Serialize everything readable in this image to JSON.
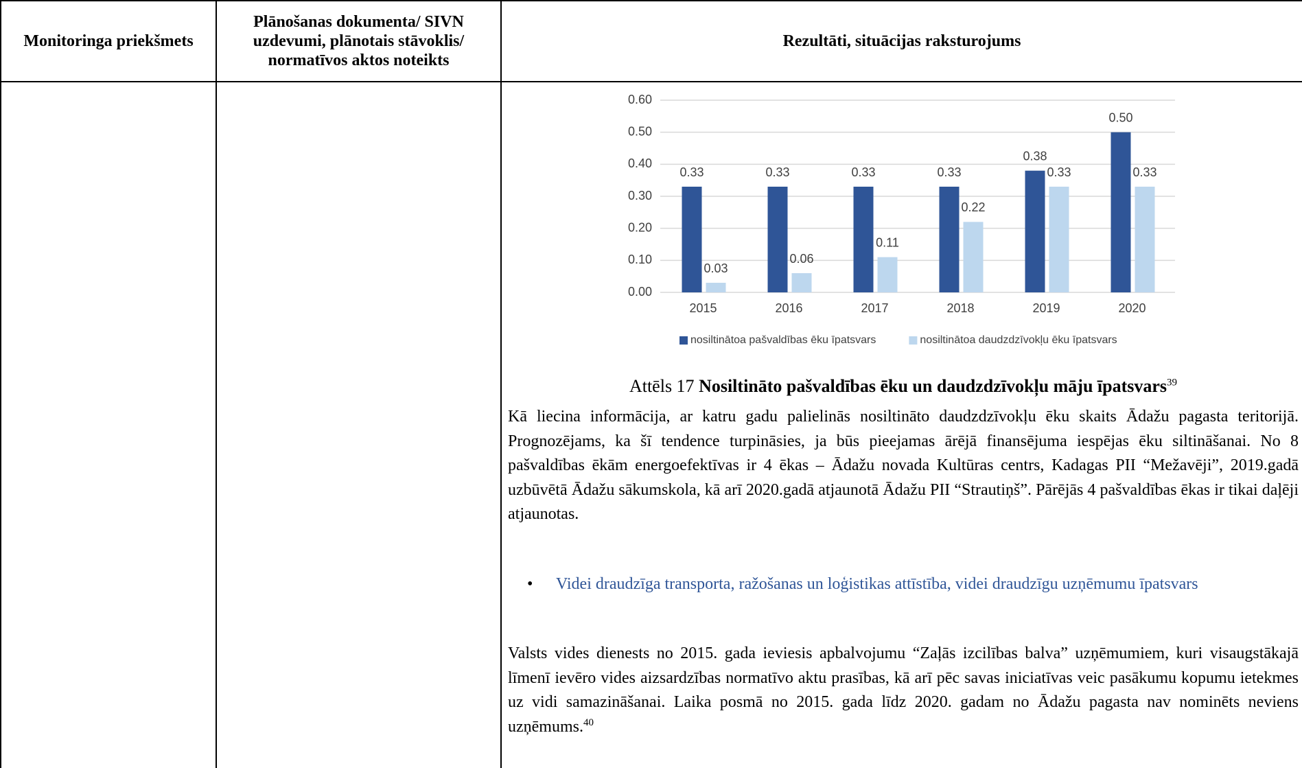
{
  "table": {
    "headers": [
      "Monitoringa priekšmets",
      "Plānošanas dokumenta/ SIVN uzdevumi, plānotais stāvoklis/ normatīvos aktos noteikts",
      "Rezultāti, situācijas raksturojums"
    ]
  },
  "chart": {
    "type": "bar",
    "categories": [
      "2015",
      "2016",
      "2017",
      "2018",
      "2019",
      "2020"
    ],
    "series": [
      {
        "name": "nosiltinātoa pašvaldības ēku īpatsvars",
        "color": "#2f5597",
        "values": [
          0.33,
          0.33,
          0.33,
          0.33,
          0.38,
          0.5
        ],
        "value_labels": [
          "0.33",
          "0.33",
          "0.33",
          "0.33",
          "0.38",
          "0.50"
        ]
      },
      {
        "name": "nosiltinātoa daudzdzīvokļu ēku īpatsvars",
        "color": "#bdd7ee",
        "values": [
          0.03,
          0.06,
          0.11,
          0.22,
          0.33,
          0.33
        ],
        "value_labels": [
          "0.03",
          "0.06",
          "0.11",
          "0.22",
          "0.33",
          "0.33"
        ]
      }
    ],
    "ylim": [
      0,
      0.6
    ],
    "yticks": [
      {
        "value": 0,
        "label": "0.00"
      },
      {
        "value": 0.1,
        "label": "0.10"
      },
      {
        "value": 0.2,
        "label": "0.20"
      },
      {
        "value": 0.3,
        "label": "0.30"
      },
      {
        "value": 0.4,
        "label": "0.40"
      },
      {
        "value": 0.5,
        "label": "0.50"
      },
      {
        "value": 0.6,
        "label": "0.60"
      }
    ],
    "grid": true,
    "legend": "bottom"
  },
  "caption": {
    "prefix": "Attēls 17",
    "title": "Nosiltināto pašvaldības ēku un daudzdzīvokļu māju īpatsvars",
    "note": "39"
  },
  "paragraphs": [
    "Kā liecina informācija, ar katru gadu palielinās nosiltināto daudzdzīvokļu ēku skaits Ādažu pagasta teritorijā. Prognozējams, ka šī tendence turpināsies, ja būs pieejamas ārējā finansējuma iespējas ēku siltināšanai. No 8 pašvaldības ēkām energoefektīvas ir 4 ēkas – Ādažu novada Kultūras centrs, Kadagas PII “Mežavēji”, 2019.gadā uzbūvētā Ādažu sākumskola, kā arī 2020.gadā atjaunotā Ādažu PII “Strautiņš”. Pārējās 4 pašvaldības ēkas ir tikai daļēji atjaunotas."
  ],
  "bullet": "Videi draudzīga transporta, ražošanas un loģistikas attīstība, videi draudzīgu uzņēmumu īpatsvars",
  "paragraph2": {
    "text": "Valsts vides dienests no 2015. gada ieviesis apbalvojumu “Zaļās izcilības balva” uzņēmumiem, kuri visaugstākajā līmenī ievēro vides aizsardzības normatīvo aktu prasības, kā arī pēc savas iniciatīvas veic pasākumu kopumu ietekmes uz vidi samazināšanai.  Laika posmā no 2015. gada līdz 2020. gadam no Ādažu pagasta nav nominēts neviens uzņēmums.",
    "note": "40"
  }
}
